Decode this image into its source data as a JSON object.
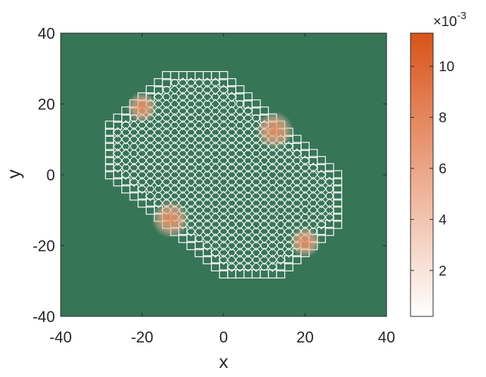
{
  "chart_data": {
    "type": "heatmap",
    "xlabel": "x",
    "ylabel": "y",
    "xlim": [
      -40,
      40
    ],
    "ylim": [
      -40,
      40
    ],
    "x_ticks": [
      "-40",
      "-20",
      "0",
      "20",
      "40"
    ],
    "y_ticks": [
      "40",
      "20",
      "0",
      "-20",
      "-40"
    ],
    "background_color": "#377557",
    "pattern_color": "#ffffff",
    "pattern_region": {
      "description": "rotated octagonal lattice of white contour loops",
      "center": [
        0,
        0
      ],
      "extent_along_diagonal": 30,
      "extent_across_diagonal": 20
    },
    "hotspots": [
      {
        "x": -20,
        "y": 19,
        "value": 0.004
      },
      {
        "x": 12.5,
        "y": 12.5,
        "value": 0.006
      },
      {
        "x": -13,
        "y": -12.5,
        "value": 0.006
      },
      {
        "x": 20,
        "y": -19,
        "value": 0.004
      }
    ],
    "colorbar": {
      "min": 0.0002,
      "max": 0.0113,
      "exponent_label": "×10",
      "exponent_power": "-3",
      "ticks": [
        "2",
        "4",
        "6",
        "8",
        "10"
      ],
      "tick_values": [
        2,
        4,
        6,
        8,
        10
      ],
      "color_low": "#ffffff",
      "color_high": "#d95319"
    }
  }
}
